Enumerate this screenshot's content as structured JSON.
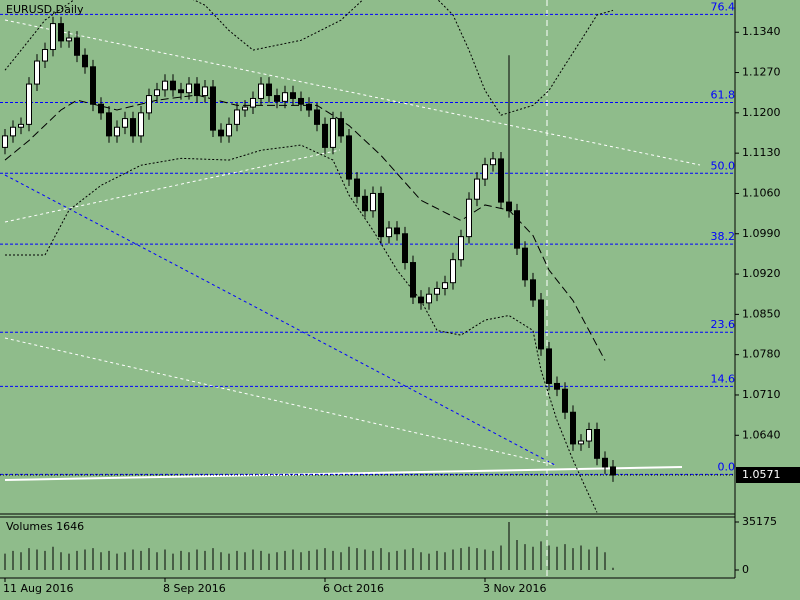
{
  "chart_data": {
    "type": "candlestick",
    "title": "EURUSD,Daily",
    "background": "#8fbc8b",
    "up_color": "#ffffff",
    "down_color": "#000000",
    "categories": [
      "11 Aug 2016",
      null,
      null,
      null,
      null,
      null,
      null,
      null,
      null,
      null,
      null,
      null,
      null,
      null,
      null,
      null,
      null,
      null,
      null,
      null,
      "8 Sep 2016",
      null,
      null,
      null,
      null,
      null,
      null,
      null,
      null,
      null,
      null,
      null,
      null,
      null,
      null,
      null,
      null,
      null,
      null,
      null,
      "6 Oct 2016",
      null,
      null,
      null,
      null,
      null,
      null,
      null,
      null,
      null,
      null,
      null,
      null,
      null,
      null,
      null,
      null,
      null,
      null,
      null,
      "3 Nov 2016",
      null,
      null,
      null,
      null,
      null,
      null,
      null,
      null,
      null,
      null,
      null,
      null,
      null,
      null,
      null,
      null
    ],
    "open": [
      1.114,
      1.116,
      1.1175,
      1.118,
      1.125,
      1.129,
      1.131,
      1.1355,
      1.1325,
      1.133,
      1.13,
      1.128,
      1.1215,
      1.12,
      1.116,
      1.1175,
      1.119,
      1.116,
      1.12,
      1.123,
      1.124,
      1.1255,
      1.124,
      1.1235,
      1.125,
      1.123,
      1.1245,
      1.117,
      1.116,
      1.118,
      1.1205,
      1.121,
      1.1225,
      1.125,
      1.123,
      1.122,
      1.1235,
      1.1225,
      1.1215,
      1.1205,
      1.118,
      1.114,
      1.119,
      1.116,
      1.1085,
      1.1055,
      1.103,
      1.106,
      1.0985,
      1.1,
      1.099,
      1.094,
      1.088,
      1.087,
      1.0885,
      1.0895,
      1.0905,
      1.0945,
      1.0985,
      1.105,
      1.1085,
      1.111,
      1.112,
      1.1045,
      1.103,
      1.0965,
      1.091,
      1.0875,
      1.079,
      1.073,
      1.072,
      1.068,
      1.0625,
      1.063,
      1.065,
      1.06,
      1.0585
    ],
    "high": [
      1.1172,
      1.1187,
      1.1192,
      1.1262,
      1.1302,
      1.1322,
      1.1367,
      1.1367,
      1.1342,
      1.1342,
      1.1312,
      1.1292,
      1.1227,
      1.1212,
      1.1187,
      1.1202,
      1.1202,
      1.1212,
      1.1242,
      1.1252,
      1.1267,
      1.1267,
      1.1252,
      1.1262,
      1.1262,
      1.1257,
      1.1257,
      1.1182,
      1.1192,
      1.1217,
      1.1222,
      1.1237,
      1.1262,
      1.1262,
      1.1242,
      1.1247,
      1.1247,
      1.1237,
      1.1227,
      1.1217,
      1.1192,
      1.1202,
      1.1202,
      1.1172,
      1.1097,
      1.1067,
      1.1072,
      1.1072,
      1.1012,
      1.1012,
      1.1002,
      1.0952,
      1.0892,
      1.0897,
      1.0907,
      1.0917,
      1.0957,
      1.0997,
      1.1062,
      1.1097,
      1.1122,
      1.1132,
      1.1132,
      1.13,
      1.1042,
      1.0977,
      1.0922,
      1.0887,
      1.0802,
      1.0742,
      1.0732,
      1.0692,
      1.0642,
      1.0662,
      1.0662,
      1.0612,
      1.0597
    ],
    "low": [
      1.1128,
      1.1148,
      1.1163,
      1.1168,
      1.1238,
      1.1278,
      1.1298,
      1.1313,
      1.1313,
      1.1288,
      1.1268,
      1.1203,
      1.1188,
      1.1148,
      1.1148,
      1.1163,
      1.1148,
      1.1148,
      1.1188,
      1.1218,
      1.1228,
      1.1228,
      1.1223,
      1.1223,
      1.1218,
      1.1218,
      1.1158,
      1.1148,
      1.1148,
      1.1168,
      1.1193,
      1.1198,
      1.1213,
      1.1218,
      1.1208,
      1.1208,
      1.1213,
      1.1203,
      1.1193,
      1.1168,
      1.1128,
      1.1128,
      1.1148,
      1.1073,
      1.1043,
      1.1018,
      1.1018,
      1.0973,
      1.0973,
      1.0978,
      1.0928,
      1.0868,
      1.0858,
      1.0858,
      1.0873,
      1.0883,
      1.0893,
      1.0933,
      1.0973,
      1.1038,
      1.1073,
      1.1098,
      1.1033,
      1.1018,
      1.0953,
      1.0898,
      1.0863,
      1.0778,
      1.0718,
      1.0708,
      1.0668,
      1.0613,
      1.0613,
      1.0618,
      1.0588,
      1.0573,
      1.0559
    ],
    "close": [
      1.116,
      1.1175,
      1.118,
      1.125,
      1.129,
      1.131,
      1.1355,
      1.1325,
      1.133,
      1.13,
      1.128,
      1.1215,
      1.12,
      1.116,
      1.1175,
      1.119,
      1.116,
      1.12,
      1.123,
      1.124,
      1.1255,
      1.124,
      1.1235,
      1.125,
      1.123,
      1.1245,
      1.117,
      1.116,
      1.118,
      1.1205,
      1.121,
      1.1225,
      1.125,
      1.123,
      1.122,
      1.1235,
      1.1225,
      1.1215,
      1.1205,
      1.118,
      1.114,
      1.119,
      1.116,
      1.1085,
      1.1055,
      1.103,
      1.106,
      1.0985,
      1.1,
      1.099,
      1.094,
      1.088,
      1.087,
      1.0885,
      1.0895,
      1.0905,
      1.0945,
      1.0985,
      1.105,
      1.1085,
      1.111,
      1.112,
      1.1045,
      1.103,
      1.0965,
      1.091,
      1.0875,
      1.079,
      1.073,
      1.072,
      1.068,
      1.0625,
      1.063,
      1.065,
      1.06,
      1.0585,
      1.0571
    ],
    "ylim": [
      1.0505,
      1.1396
    ],
    "yticks": [
      {
        "value": 1.134,
        "label": "1.1340"
      },
      {
        "value": 1.127,
        "label": "1.1270"
      },
      {
        "value": 1.12,
        "label": "1.1200"
      },
      {
        "value": 1.113,
        "label": "1.1130"
      },
      {
        "value": 1.106,
        "label": "1.1060"
      },
      {
        "value": 1.099,
        "label": "1.0990"
      },
      {
        "value": 1.092,
        "label": "1.0920"
      },
      {
        "value": 1.085,
        "label": "1.0850"
      },
      {
        "value": 1.078,
        "label": "1.0780"
      },
      {
        "value": 1.071,
        "label": "1.0710"
      },
      {
        "value": 1.064,
        "label": "1.0640"
      }
    ],
    "last_price": 1.0571,
    "fib_color": "#0000ff",
    "fib_levels": [
      {
        "label": "76.4",
        "value": 1.1371
      },
      {
        "label": "61.8",
        "value": 1.1218
      },
      {
        "label": "50.0",
        "value": 1.1095
      },
      {
        "label": "38.2",
        "value": 1.0972
      },
      {
        "label": "23.6",
        "value": 1.0819
      },
      {
        "label": "14.6",
        "value": 1.0725
      },
      {
        "label": "0.0",
        "value": 1.0572
      }
    ],
    "bands": [
      {
        "x": [
          0,
          3,
          5,
          9,
          17,
          25,
          28,
          31,
          37,
          42,
          45,
          51,
          56,
          58,
          60,
          62,
          66,
          68,
          70,
          72,
          74,
          76
        ],
        "values": [
          1.1274,
          1.1326,
          1.1361,
          1.14,
          1.144,
          1.1387,
          1.1343,
          1.1309,
          1.1326,
          1.1361,
          1.14,
          1.144,
          1.137,
          1.1309,
          1.1239,
          1.1196,
          1.1213,
          1.1239,
          1.1283,
          1.1326,
          1.137,
          1.1378
        ],
        "dash": "2,2"
      },
      {
        "x": [
          0,
          3,
          7,
          9,
          14,
          19,
          24,
          29,
          34,
          39,
          43,
          47,
          52,
          57,
          60,
          63,
          66,
          68,
          71,
          73,
          75
        ],
        "values": [
          1.1118,
          1.1152,
          1.1205,
          1.1222,
          1.1205,
          1.1222,
          1.1231,
          1.1213,
          1.1213,
          1.1213,
          1.1178,
          1.1126,
          1.1048,
          1.1013,
          1.104,
          1.1031,
          1.0987,
          1.0927,
          1.0874,
          1.0822,
          1.077
        ],
        "dash": "8,4"
      },
      {
        "x": [
          0,
          5,
          8,
          12,
          17,
          22,
          28,
          32,
          37,
          41,
          43,
          46,
          49,
          52,
          54,
          57,
          60,
          63,
          66,
          67,
          69,
          71,
          73,
          74
        ],
        "values": [
          1.0953,
          1.0953,
          1.1031,
          1.1074,
          1.1109,
          1.1121,
          1.1118,
          1.1135,
          1.1144,
          1.1118,
          1.1057,
          1.0996,
          1.0927,
          1.0874,
          1.0822,
          1.0814,
          1.084,
          1.0848,
          1.0822,
          1.0753,
          1.0666,
          1.0597,
          1.0536,
          1.0506
        ],
        "dash": "2,2"
      }
    ],
    "volume": {
      "title": "Volumes 1646",
      "color": "#000000",
      "ylim": [
        -5130,
        38850
      ],
      "yticks": [
        35175,
        0
      ],
      "values": [
        12000,
        14000,
        13000,
        16000,
        15000,
        14000,
        17000,
        13000,
        12000,
        14000,
        15000,
        16000,
        13000,
        14000,
        12000,
        13000,
        15000,
        14000,
        16000,
        13000,
        15000,
        12000,
        14000,
        13000,
        15000,
        14000,
        16000,
        13000,
        12000,
        14000,
        13000,
        15000,
        14000,
        12000,
        13000,
        14000,
        15000,
        13000,
        14000,
        15000,
        16000,
        14000,
        13000,
        17000,
        16000,
        15000,
        14000,
        16000,
        13000,
        14000,
        15000,
        16000,
        13000,
        12000,
        14000,
        13000,
        15000,
        16000,
        17000,
        16000,
        15000,
        14000,
        18000,
        35175,
        22000,
        19000,
        17000,
        21000,
        18000,
        17000,
        19000,
        16000,
        18000,
        15000,
        17000,
        13000,
        1646
      ]
    }
  }
}
